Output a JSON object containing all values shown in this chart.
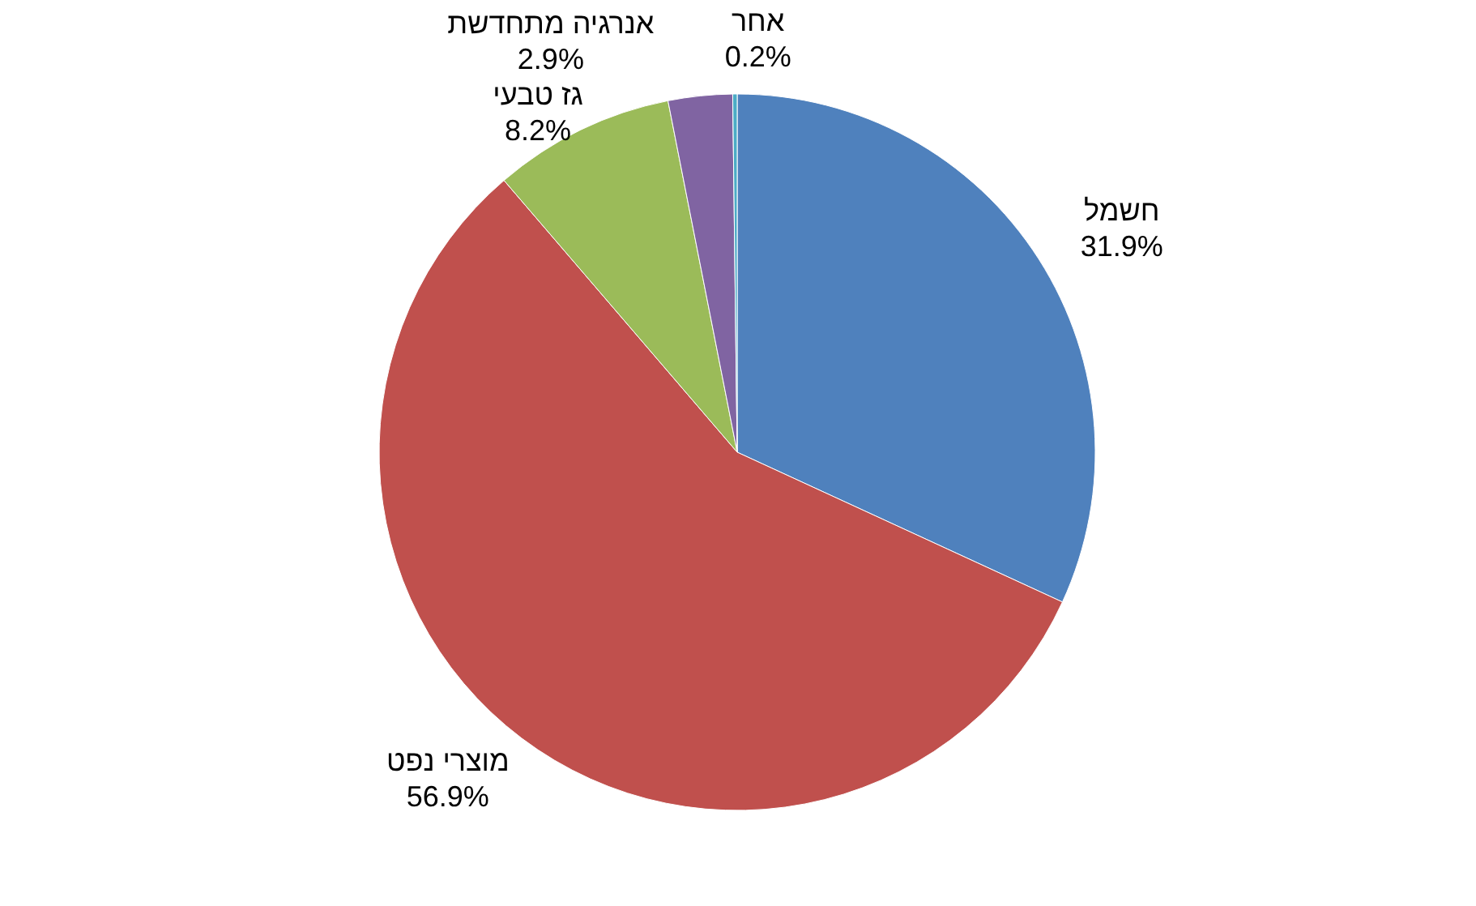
{
  "chart_data": {
    "type": "pie",
    "categories": [
      "חשמל",
      "מוצרי נפט",
      "גז טבעי",
      "אנרגיה מתחדשת",
      "אחר"
    ],
    "values": [
      31.9,
      56.9,
      8.2,
      2.9,
      0.2
    ],
    "value_labels": [
      "31.9%",
      "56.9%",
      "8.2%",
      "2.9%",
      "0.2%"
    ],
    "colors": [
      "#4f81bd",
      "#c0504d",
      "#9bbb59",
      "#8064a2",
      "#4bacc6"
    ],
    "legend": false
  }
}
